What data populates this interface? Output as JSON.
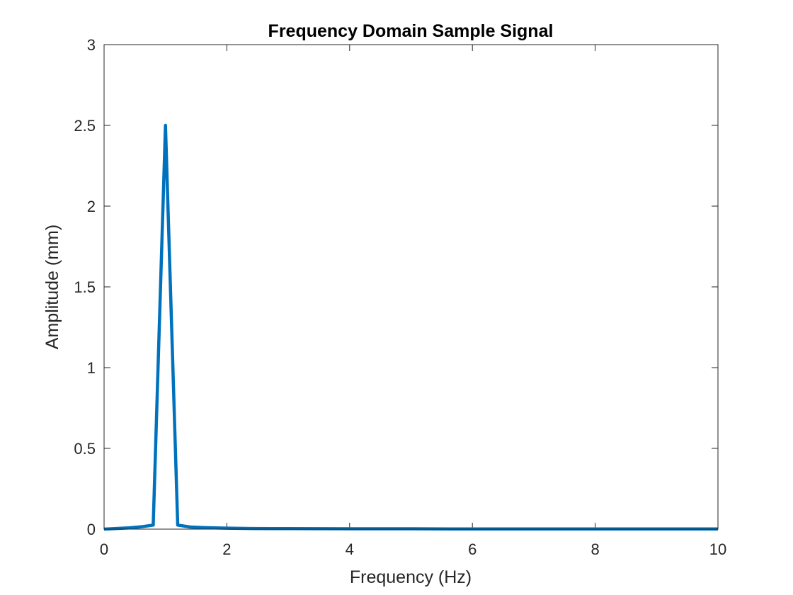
{
  "chart_data": {
    "type": "line",
    "title": "Frequency Domain Sample Signal",
    "xlabel": "Frequency (Hz)",
    "ylabel": "Amplitude (mm)",
    "xlim": [
      0,
      10
    ],
    "ylim": [
      0,
      3
    ],
    "x_ticks": [
      0,
      2,
      4,
      6,
      8,
      10
    ],
    "y_ticks": [
      0,
      0.5,
      1,
      1.5,
      2,
      2.5,
      3
    ],
    "x_tick_labels": [
      "0",
      "2",
      "4",
      "6",
      "8",
      "10"
    ],
    "y_tick_labels": [
      "0",
      "0.5",
      "1",
      "1.5",
      "2",
      "2.5",
      "3"
    ],
    "grid": false,
    "line_color": "#0072BD",
    "series": [
      {
        "x": [
          0,
          0.2,
          0.4,
          0.6,
          0.8,
          1.0,
          1.2,
          1.4,
          1.6,
          1.8,
          2.0,
          2.4,
          3.0,
          4.0,
          5.0,
          6.0,
          7.0,
          8.0,
          9.0,
          10.0
        ],
        "values": [
          0.0,
          0.004,
          0.008,
          0.014,
          0.025,
          2.5,
          0.025,
          0.013,
          0.01,
          0.008,
          0.006,
          0.004,
          0.003,
          0.002,
          0.002,
          0.001,
          0.001,
          0.001,
          0.001,
          0.001
        ]
      }
    ]
  }
}
